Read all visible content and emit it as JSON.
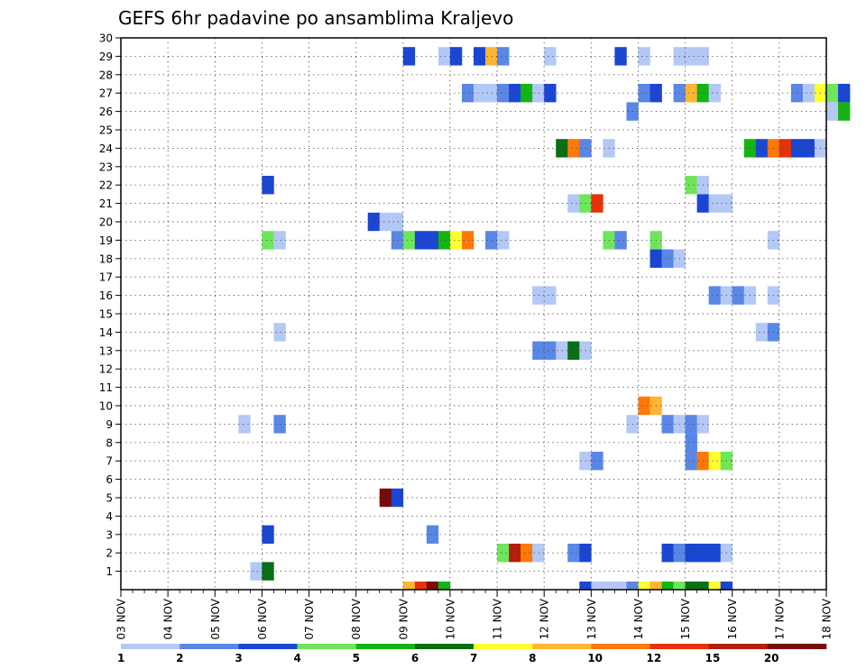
{
  "chart_data": {
    "type": "heatmap",
    "title": "GEFS 6hr padavine po ansamblima Kraljevo",
    "x_tick_labels": [
      "03 NOV",
      "04 NOV",
      "05 NOV",
      "06 NOV",
      "07 NOV",
      "08 NOV",
      "09 NOV",
      "10 NOV",
      "11 NOV",
      "12 NOV",
      "13 NOV",
      "14 NOV",
      "15 NOV",
      "16 NOV",
      "17 NOV",
      "18 NOV"
    ],
    "y_tick_labels": [
      "1",
      "2",
      "3",
      "4",
      "5",
      "6",
      "7",
      "8",
      "9",
      "10",
      "11",
      "12",
      "13",
      "14",
      "15",
      "16",
      "17",
      "18",
      "19",
      "20",
      "21",
      "22",
      "23",
      "24",
      "25",
      "26",
      "27",
      "28",
      "29",
      "30"
    ],
    "xlim_days": [
      0,
      15
    ],
    "ylim_members": [
      0,
      30
    ],
    "step_hours": 6,
    "grid": true,
    "legend": {
      "placement": "bottom",
      "colors": [
        "#b4c8f5",
        "#5a87e6",
        "#1a46d2",
        "#6ee65a",
        "#14b414",
        "#0a6e14",
        "#ffff32",
        "#ffb432",
        "#ff780a",
        "#e6320a",
        "#b41e0a",
        "#780a0a"
      ],
      "labels": [
        "1",
        "2",
        "3",
        "4",
        "5",
        "6",
        "7",
        "8",
        "10",
        "12",
        "15",
        "20"
      ]
    },
    "cells": [
      {
        "member": 29,
        "day": 6.0,
        "level": 3
      },
      {
        "member": 29,
        "day": 6.75,
        "level": 1
      },
      {
        "member": 29,
        "day": 7.0,
        "level": 3
      },
      {
        "member": 29,
        "day": 7.5,
        "level": 3
      },
      {
        "member": 29,
        "day": 7.75,
        "level": 8
      },
      {
        "member": 29,
        "day": 8.0,
        "level": 2
      },
      {
        "member": 29,
        "day": 9.0,
        "level": 1
      },
      {
        "member": 29,
        "day": 10.5,
        "level": 3
      },
      {
        "member": 29,
        "day": 11.0,
        "level": 1
      },
      {
        "member": 29,
        "day": 11.75,
        "level": 1
      },
      {
        "member": 29,
        "day": 12.0,
        "level": 1
      },
      {
        "member": 29,
        "day": 12.25,
        "level": 1
      },
      {
        "member": 27,
        "day": 7.25,
        "level": 2
      },
      {
        "member": 27,
        "day": 7.5,
        "level": 1
      },
      {
        "member": 27,
        "day": 7.75,
        "level": 1
      },
      {
        "member": 27,
        "day": 8.0,
        "level": 2
      },
      {
        "member": 27,
        "day": 8.25,
        "level": 3
      },
      {
        "member": 27,
        "day": 8.5,
        "level": 5
      },
      {
        "member": 27,
        "day": 8.75,
        "level": 1
      },
      {
        "member": 27,
        "day": 9.0,
        "level": 3
      },
      {
        "member": 27,
        "day": 11.0,
        "level": 2
      },
      {
        "member": 27,
        "day": 11.25,
        "level": 3
      },
      {
        "member": 27,
        "day": 11.75,
        "level": 2
      },
      {
        "member": 27,
        "day": 12.0,
        "level": 8
      },
      {
        "member": 27,
        "day": 12.25,
        "level": 5
      },
      {
        "member": 27,
        "day": 12.5,
        "level": 1
      },
      {
        "member": 27,
        "day": 14.25,
        "level": 2
      },
      {
        "member": 27,
        "day": 14.5,
        "level": 1
      },
      {
        "member": 27,
        "day": 14.75,
        "level": 7
      },
      {
        "member": 27,
        "day": 15.0,
        "level": 4
      },
      {
        "member": 27,
        "day": 15.25,
        "level": 3
      },
      {
        "member": 26,
        "day": 10.75,
        "level": 2
      },
      {
        "member": 26,
        "day": 15.0,
        "level": 1
      },
      {
        "member": 26,
        "day": 15.25,
        "level": 5
      },
      {
        "member": 24,
        "day": 9.25,
        "level": 6
      },
      {
        "member": 24,
        "day": 9.5,
        "level": 10
      },
      {
        "member": 24,
        "day": 9.75,
        "level": 2
      },
      {
        "member": 24,
        "day": 10.25,
        "level": 1
      },
      {
        "member": 24,
        "day": 13.25,
        "level": 5
      },
      {
        "member": 24,
        "day": 13.5,
        "level": 3
      },
      {
        "member": 24,
        "day": 13.75,
        "level": 10
      },
      {
        "member": 24,
        "day": 14.0,
        "level": 12
      },
      {
        "member": 24,
        "day": 14.25,
        "level": 3
      },
      {
        "member": 24,
        "day": 14.5,
        "level": 3
      },
      {
        "member": 24,
        "day": 14.75,
        "level": 1
      },
      {
        "member": 22,
        "day": 3.0,
        "level": 3
      },
      {
        "member": 22,
        "day": 12.0,
        "level": 4
      },
      {
        "member": 22,
        "day": 12.25,
        "level": 1
      },
      {
        "member": 21,
        "day": 9.5,
        "level": 1
      },
      {
        "member": 21,
        "day": 9.75,
        "level": 4
      },
      {
        "member": 21,
        "day": 10.0,
        "level": 12
      },
      {
        "member": 21,
        "day": 12.25,
        "level": 3
      },
      {
        "member": 21,
        "day": 12.5,
        "level": 1
      },
      {
        "member": 21,
        "day": 12.75,
        "level": 1
      },
      {
        "member": 20,
        "day": 5.25,
        "level": 3
      },
      {
        "member": 20,
        "day": 5.5,
        "level": 1
      },
      {
        "member": 20,
        "day": 5.75,
        "level": 1
      },
      {
        "member": 19,
        "day": 3.0,
        "level": 4
      },
      {
        "member": 19,
        "day": 3.25,
        "level": 1
      },
      {
        "member": 19,
        "day": 5.75,
        "level": 2
      },
      {
        "member": 19,
        "day": 6.0,
        "level": 4
      },
      {
        "member": 19,
        "day": 6.25,
        "level": 3
      },
      {
        "member": 19,
        "day": 6.5,
        "level": 3
      },
      {
        "member": 19,
        "day": 6.75,
        "level": 5
      },
      {
        "member": 19,
        "day": 7.0,
        "level": 7
      },
      {
        "member": 19,
        "day": 7.25,
        "level": 10
      },
      {
        "member": 19,
        "day": 7.75,
        "level": 2
      },
      {
        "member": 19,
        "day": 8.0,
        "level": 1
      },
      {
        "member": 19,
        "day": 10.25,
        "level": 4
      },
      {
        "member": 19,
        "day": 10.5,
        "level": 2
      },
      {
        "member": 19,
        "day": 11.25,
        "level": 4
      },
      {
        "member": 19,
        "day": 13.75,
        "level": 1
      },
      {
        "member": 18,
        "day": 11.25,
        "level": 3
      },
      {
        "member": 18,
        "day": 11.5,
        "level": 2
      },
      {
        "member": 18,
        "day": 11.75,
        "level": 1
      },
      {
        "member": 16,
        "day": 8.75,
        "level": 1
      },
      {
        "member": 16,
        "day": 9.0,
        "level": 1
      },
      {
        "member": 16,
        "day": 12.5,
        "level": 2
      },
      {
        "member": 16,
        "day": 12.75,
        "level": 1
      },
      {
        "member": 16,
        "day": 13.0,
        "level": 2
      },
      {
        "member": 16,
        "day": 13.25,
        "level": 1
      },
      {
        "member": 16,
        "day": 13.75,
        "level": 1
      },
      {
        "member": 14,
        "day": 3.25,
        "level": 1
      },
      {
        "member": 14,
        "day": 13.5,
        "level": 1
      },
      {
        "member": 14,
        "day": 13.75,
        "level": 2
      },
      {
        "member": 13,
        "day": 8.75,
        "level": 2
      },
      {
        "member": 13,
        "day": 9.0,
        "level": 2
      },
      {
        "member": 13,
        "day": 9.25,
        "level": 1
      },
      {
        "member": 13,
        "day": 9.5,
        "level": 6
      },
      {
        "member": 13,
        "day": 9.75,
        "level": 1
      },
      {
        "member": 10,
        "day": 11.0,
        "level": 10
      },
      {
        "member": 10,
        "day": 11.25,
        "level": 8
      },
      {
        "member": 9,
        "day": 2.5,
        "level": 1
      },
      {
        "member": 9,
        "day": 3.25,
        "level": 2
      },
      {
        "member": 9,
        "day": 10.75,
        "level": 1
      },
      {
        "member": 9,
        "day": 11.5,
        "level": 2
      },
      {
        "member": 9,
        "day": 11.75,
        "level": 1
      },
      {
        "member": 9,
        "day": 12.0,
        "level": 2
      },
      {
        "member": 9,
        "day": 12.25,
        "level": 1
      },
      {
        "member": 8,
        "day": 12.0,
        "level": 2
      },
      {
        "member": 7,
        "day": 9.75,
        "level": 1
      },
      {
        "member": 7,
        "day": 10.0,
        "level": 2
      },
      {
        "member": 7,
        "day": 12.0,
        "level": 2
      },
      {
        "member": 7,
        "day": 12.25,
        "level": 10
      },
      {
        "member": 7,
        "day": 12.5,
        "level": 7
      },
      {
        "member": 7,
        "day": 12.75,
        "level": 4
      },
      {
        "member": 5,
        "day": 5.5,
        "level": 20
      },
      {
        "member": 5,
        "day": 5.75,
        "level": 3
      },
      {
        "member": 3,
        "day": 3.0,
        "level": 3
      },
      {
        "member": 3,
        "day": 6.5,
        "level": 2
      },
      {
        "member": 2,
        "day": 8.0,
        "level": 4
      },
      {
        "member": 2,
        "day": 8.25,
        "level": 15
      },
      {
        "member": 2,
        "day": 8.5,
        "level": 10
      },
      {
        "member": 2,
        "day": 8.75,
        "level": 1
      },
      {
        "member": 2,
        "day": 9.5,
        "level": 2
      },
      {
        "member": 2,
        "day": 9.75,
        "level": 3
      },
      {
        "member": 2,
        "day": 11.5,
        "level": 3
      },
      {
        "member": 2,
        "day": 11.75,
        "level": 2
      },
      {
        "member": 2,
        "day": 12.0,
        "level": 3
      },
      {
        "member": 2,
        "day": 12.25,
        "level": 3
      },
      {
        "member": 2,
        "day": 12.5,
        "level": 3
      },
      {
        "member": 2,
        "day": 12.75,
        "level": 1
      },
      {
        "member": 1,
        "day": 2.75,
        "level": 1
      },
      {
        "member": 1,
        "day": 3.0,
        "level": 6
      }
    ],
    "bottom_row": [
      {
        "day": 6.0,
        "level": 8
      },
      {
        "day": 6.25,
        "level": 12
      },
      {
        "day": 6.5,
        "level": 20
      },
      {
        "day": 6.75,
        "level": 5
      },
      {
        "day": 9.75,
        "level": 3
      },
      {
        "day": 10.0,
        "level": 1
      },
      {
        "day": 10.25,
        "level": 1
      },
      {
        "day": 10.5,
        "level": 1
      },
      {
        "day": 10.75,
        "level": 2
      },
      {
        "day": 11.0,
        "level": 7
      },
      {
        "day": 11.25,
        "level": 8
      },
      {
        "day": 11.5,
        "level": 5
      },
      {
        "day": 11.75,
        "level": 4
      },
      {
        "day": 12.0,
        "level": 6
      },
      {
        "day": 12.25,
        "level": 6
      },
      {
        "day": 12.5,
        "level": 7
      },
      {
        "day": 12.75,
        "level": 3
      }
    ]
  }
}
